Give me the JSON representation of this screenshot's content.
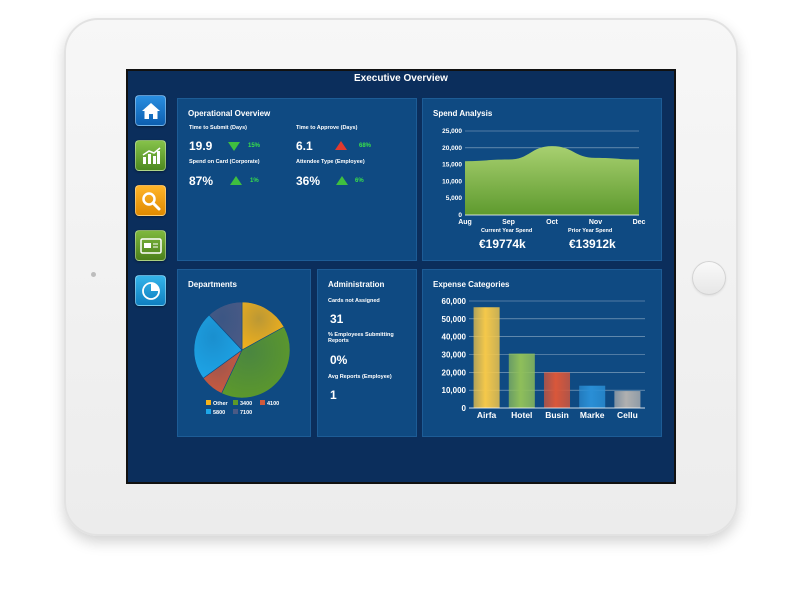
{
  "screen_title": "Executive Overview",
  "nav": [
    {
      "name": "home",
      "icon": "home-icon"
    },
    {
      "name": "analytics",
      "icon": "bar-chart-icon"
    },
    {
      "name": "search",
      "icon": "search-icon"
    },
    {
      "name": "card",
      "icon": "credit-card-icon"
    },
    {
      "name": "reports",
      "icon": "pie-chart-icon"
    }
  ],
  "operational": {
    "title": "Operational Overview",
    "metrics": [
      {
        "label": "Time to Submit (Days)",
        "value": "19.9",
        "change": "15%",
        "trend": "down-green"
      },
      {
        "label": "Time to Approve (Days)",
        "value": "6.1",
        "change": "68%",
        "trend": "up-red"
      },
      {
        "label": "Spend on Card (Corporate)",
        "value": "87%",
        "change": "1%",
        "trend": "up-green"
      },
      {
        "label": "Attendee Type (Employee)",
        "value": "36%",
        "change": "6%",
        "trend": "up-green"
      }
    ]
  },
  "spend": {
    "title": "Spend Analysis",
    "current_label": "Current Year Spend",
    "current_value": "€19774k",
    "prior_label": "Prior Year Spend",
    "prior_value": "€13912k"
  },
  "departments": {
    "title": "Departments"
  },
  "administration": {
    "title": "Administration",
    "items": [
      {
        "label": "Cards not Assigned",
        "value": "31"
      },
      {
        "label": "% Employees Submitting Reports",
        "value": "0%"
      },
      {
        "label": "Avg Reports (Employee)",
        "value": "1"
      }
    ]
  },
  "expense": {
    "title": "Expense Categories"
  },
  "chart_data": [
    {
      "type": "area",
      "title": "Spend Analysis",
      "categories": [
        "Aug",
        "Sep",
        "Oct",
        "Nov",
        "Dec"
      ],
      "series": [
        {
          "values": [
            16000,
            16500,
            20500,
            17000,
            16500
          ]
        }
      ],
      "y_ticks": [
        "0",
        "5,000",
        "10,000",
        "15,000",
        "20,000",
        "25,000"
      ],
      "ylim": [
        0,
        25000
      ],
      "grid": true,
      "color": "#8fc35a"
    },
    {
      "type": "pie",
      "title": "Departments",
      "slices": [
        {
          "name": "Other",
          "value": 17,
          "color": "#f5b21a"
        },
        {
          "name": "3400",
          "value": 40,
          "color": "#5e9a2a"
        },
        {
          "name": "4100",
          "value": 8,
          "color": "#d05a3c"
        },
        {
          "name": "5800",
          "value": 23,
          "color": "#1ea6e8"
        },
        {
          "name": "7100",
          "value": 12,
          "color": "#4a5a85"
        }
      ],
      "legend": "bottom"
    },
    {
      "type": "bar",
      "title": "Expense Categories",
      "categories": [
        "Airfa",
        "Hotel",
        "Busin",
        "Marke",
        "Cellu"
      ],
      "values": [
        56500,
        30500,
        20000,
        12500,
        9500
      ],
      "colors": [
        "#f5c84a",
        "#8fbf5a",
        "#d9573a",
        "#2a8fd6",
        "#b0b0b0"
      ],
      "y_ticks": [
        "0",
        "10,000",
        "20,000",
        "30,000",
        "40,000",
        "50,000",
        "60,000"
      ],
      "ylim": [
        0,
        60000
      ],
      "grid": true
    }
  ]
}
